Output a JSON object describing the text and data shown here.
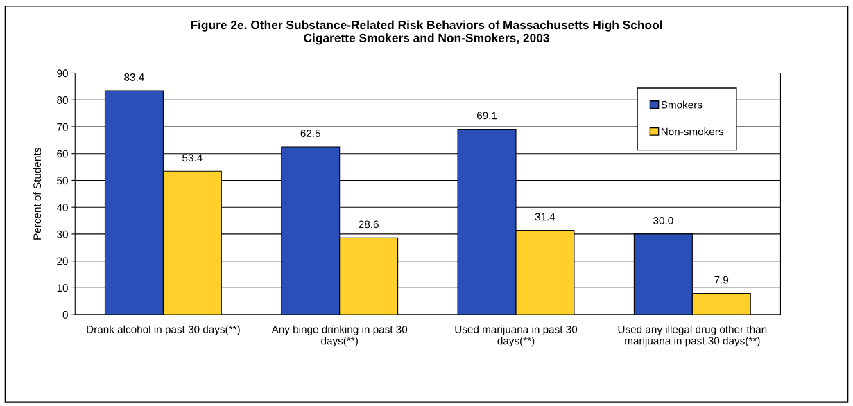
{
  "chart_data": {
    "type": "bar",
    "title": "Figure 2e. Other Substance-Related Risk Behaviors of Massachusetts High School Cigarette Smokers and Non-Smokers, 2003",
    "ylabel": "Percent of Students",
    "categories": [
      "Drank alcohol in past 30 days(**)",
      "Any binge drinking in past 30 days(**)",
      "Used marijuana in past 30 days(**)",
      "Used any illegal drug other than marijuana in past 30 days(**)"
    ],
    "series": [
      {
        "name": "Smokers",
        "color": "#2a4fb8",
        "values": [
          83.4,
          62.5,
          69.1,
          30.0
        ],
        "value_labels": [
          "83.4",
          "62.5",
          "69.1",
          "30.0"
        ]
      },
      {
        "name": "Non-smokers",
        "color": "#ffd02a",
        "values": [
          53.4,
          28.6,
          31.4,
          7.9
        ],
        "value_labels": [
          "53.4",
          "28.6",
          "31.4",
          "7.9"
        ]
      }
    ],
    "ylim": [
      0,
      90
    ],
    "yticks": [
      0,
      10,
      20,
      30,
      40,
      50,
      60,
      70,
      80,
      90
    ],
    "grid": "y",
    "legend": "top right"
  }
}
